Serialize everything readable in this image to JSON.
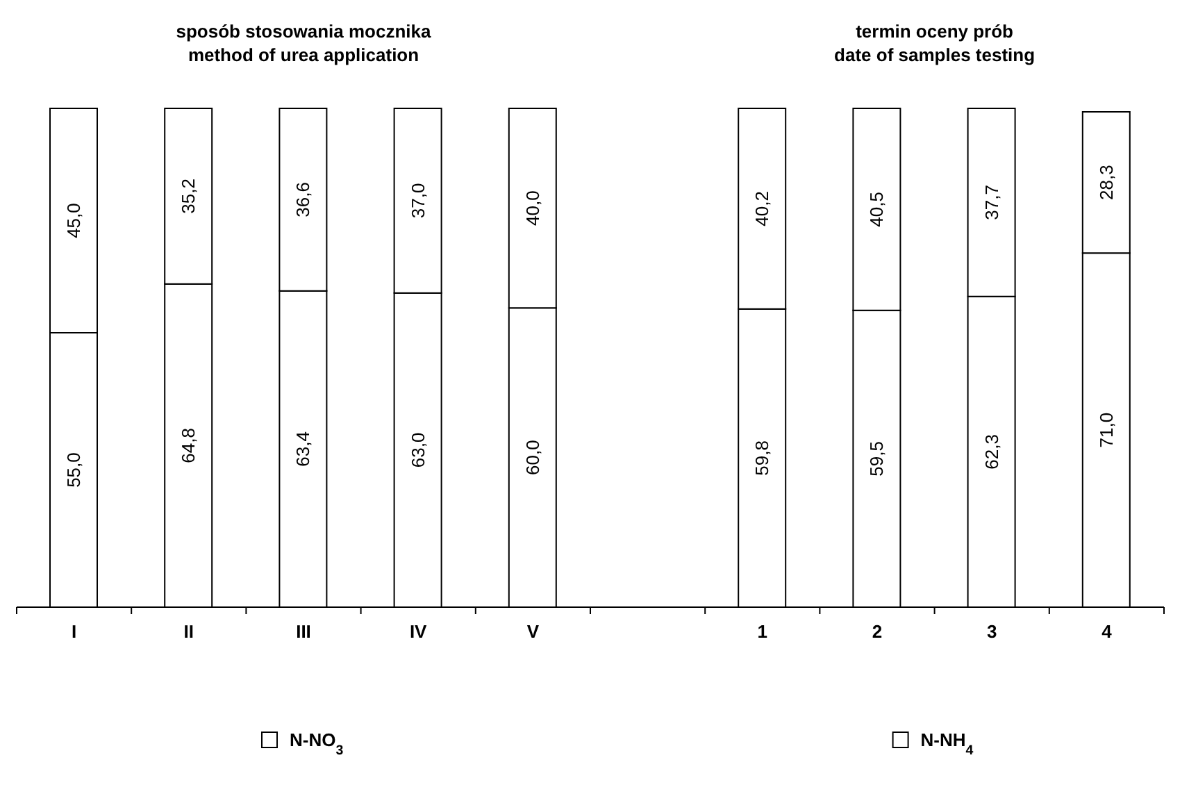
{
  "chart_data": {
    "type": "bar",
    "stacked": true,
    "categories": [
      "I",
      "II",
      "III",
      "IV",
      "V",
      null,
      "1",
      "2",
      "3",
      "4"
    ],
    "annotations": [
      "sposób stosowania mocznika\nmethod of urea application",
      "termin oceny prób\ndate of samples testing"
    ],
    "series": [
      {
        "name": "N-NO$_{3}$",
        "color": "#ffffff",
        "values": [
          55.0,
          64.8,
          63.4,
          63.0,
          60.0,
          null,
          59.8,
          59.5,
          62.3,
          71.0
        ],
        "value_labels": [
          "55,0",
          "64,8",
          "63,4",
          "63,0",
          "60,0",
          null,
          "59,8",
          "59,5",
          "62,3",
          "71,0"
        ]
      },
      {
        "name": "N-NH$_{4}$",
        "color": "#ffffff",
        "values": [
          45.0,
          35.2,
          36.6,
          37.0,
          40.0,
          null,
          40.2,
          40.5,
          37.7,
          28.3
        ],
        "value_labels": [
          "45,0",
          "35,2",
          "36,6",
          "37,0",
          "40,0",
          null,
          "40,2",
          "40,5",
          "37,7",
          "28,3"
        ]
      }
    ],
    "legend": "bottom",
    "grid": false
  }
}
